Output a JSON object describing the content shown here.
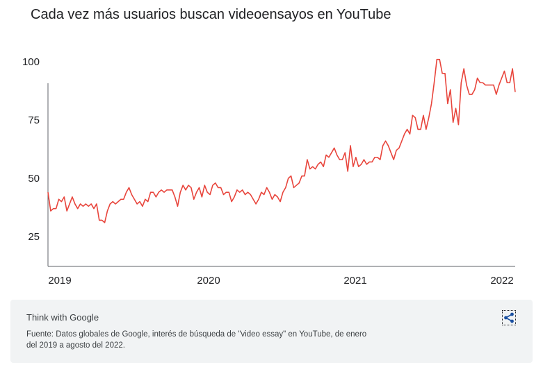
{
  "title": "Cada vez más usuarios buscan videoensayos en YouTube",
  "footer": {
    "brand": "Think with Google",
    "source": "Fuente: Datos globales de Google, interés de búsqueda de \"video essay\" en YouTube, de enero del 2019 a agosto del 2022."
  },
  "colors": {
    "line": "#e8453c",
    "axis": "#5f6368",
    "footer_bg": "#f1f3f4",
    "share_icon": "#1a4fa0"
  },
  "share_icon": "share-icon",
  "chart_data": {
    "type": "line",
    "title": "Cada vez más usuarios buscan videoensayos en YouTube",
    "xlabel": "",
    "ylabel": "",
    "x_ticks": [
      "2019",
      "2020",
      "2021",
      "2022"
    ],
    "y_ticks": [
      100,
      75,
      50,
      25
    ],
    "ylim": [
      0,
      100
    ],
    "grid": false,
    "legend": "none",
    "series": [
      {
        "values": [
          44,
          36,
          37,
          37,
          41,
          40,
          42,
          36,
          39,
          42,
          39,
          37,
          39,
          38,
          39,
          38,
          39,
          37,
          39,
          32,
          32,
          31,
          36,
          39,
          40,
          39,
          40,
          41,
          41,
          44,
          46,
          43,
          41,
          39,
          40,
          38,
          41,
          40,
          44,
          44,
          42,
          44,
          45,
          44,
          45,
          45,
          45,
          42,
          38,
          44,
          47,
          45,
          47,
          46,
          41,
          44,
          46,
          42,
          47,
          44,
          43,
          47,
          48,
          46,
          46,
          43,
          44,
          44,
          40,
          42,
          45,
          44,
          45,
          43,
          44,
          43,
          41,
          39,
          41,
          44,
          43,
          46,
          44,
          41,
          43,
          42,
          40,
          44,
          46,
          50,
          51,
          46,
          47,
          48,
          51,
          51,
          58,
          54,
          55,
          54,
          56,
          57,
          55,
          60,
          59,
          61,
          63,
          60,
          58,
          58,
          61,
          53,
          64,
          55,
          59,
          55,
          56,
          58,
          56,
          57,
          57,
          59,
          59,
          58,
          64,
          66,
          64,
          61,
          58,
          62,
          63,
          66,
          69,
          71,
          69,
          77,
          76,
          71,
          71,
          77,
          71,
          76,
          82,
          91,
          101,
          101,
          95,
          95,
          82,
          88,
          74,
          80,
          73,
          91,
          97,
          90,
          86,
          86,
          88,
          93,
          91,
          91,
          90,
          90,
          90,
          90,
          86,
          90,
          93,
          96,
          91,
          91,
          97,
          87
        ]
      }
    ]
  }
}
